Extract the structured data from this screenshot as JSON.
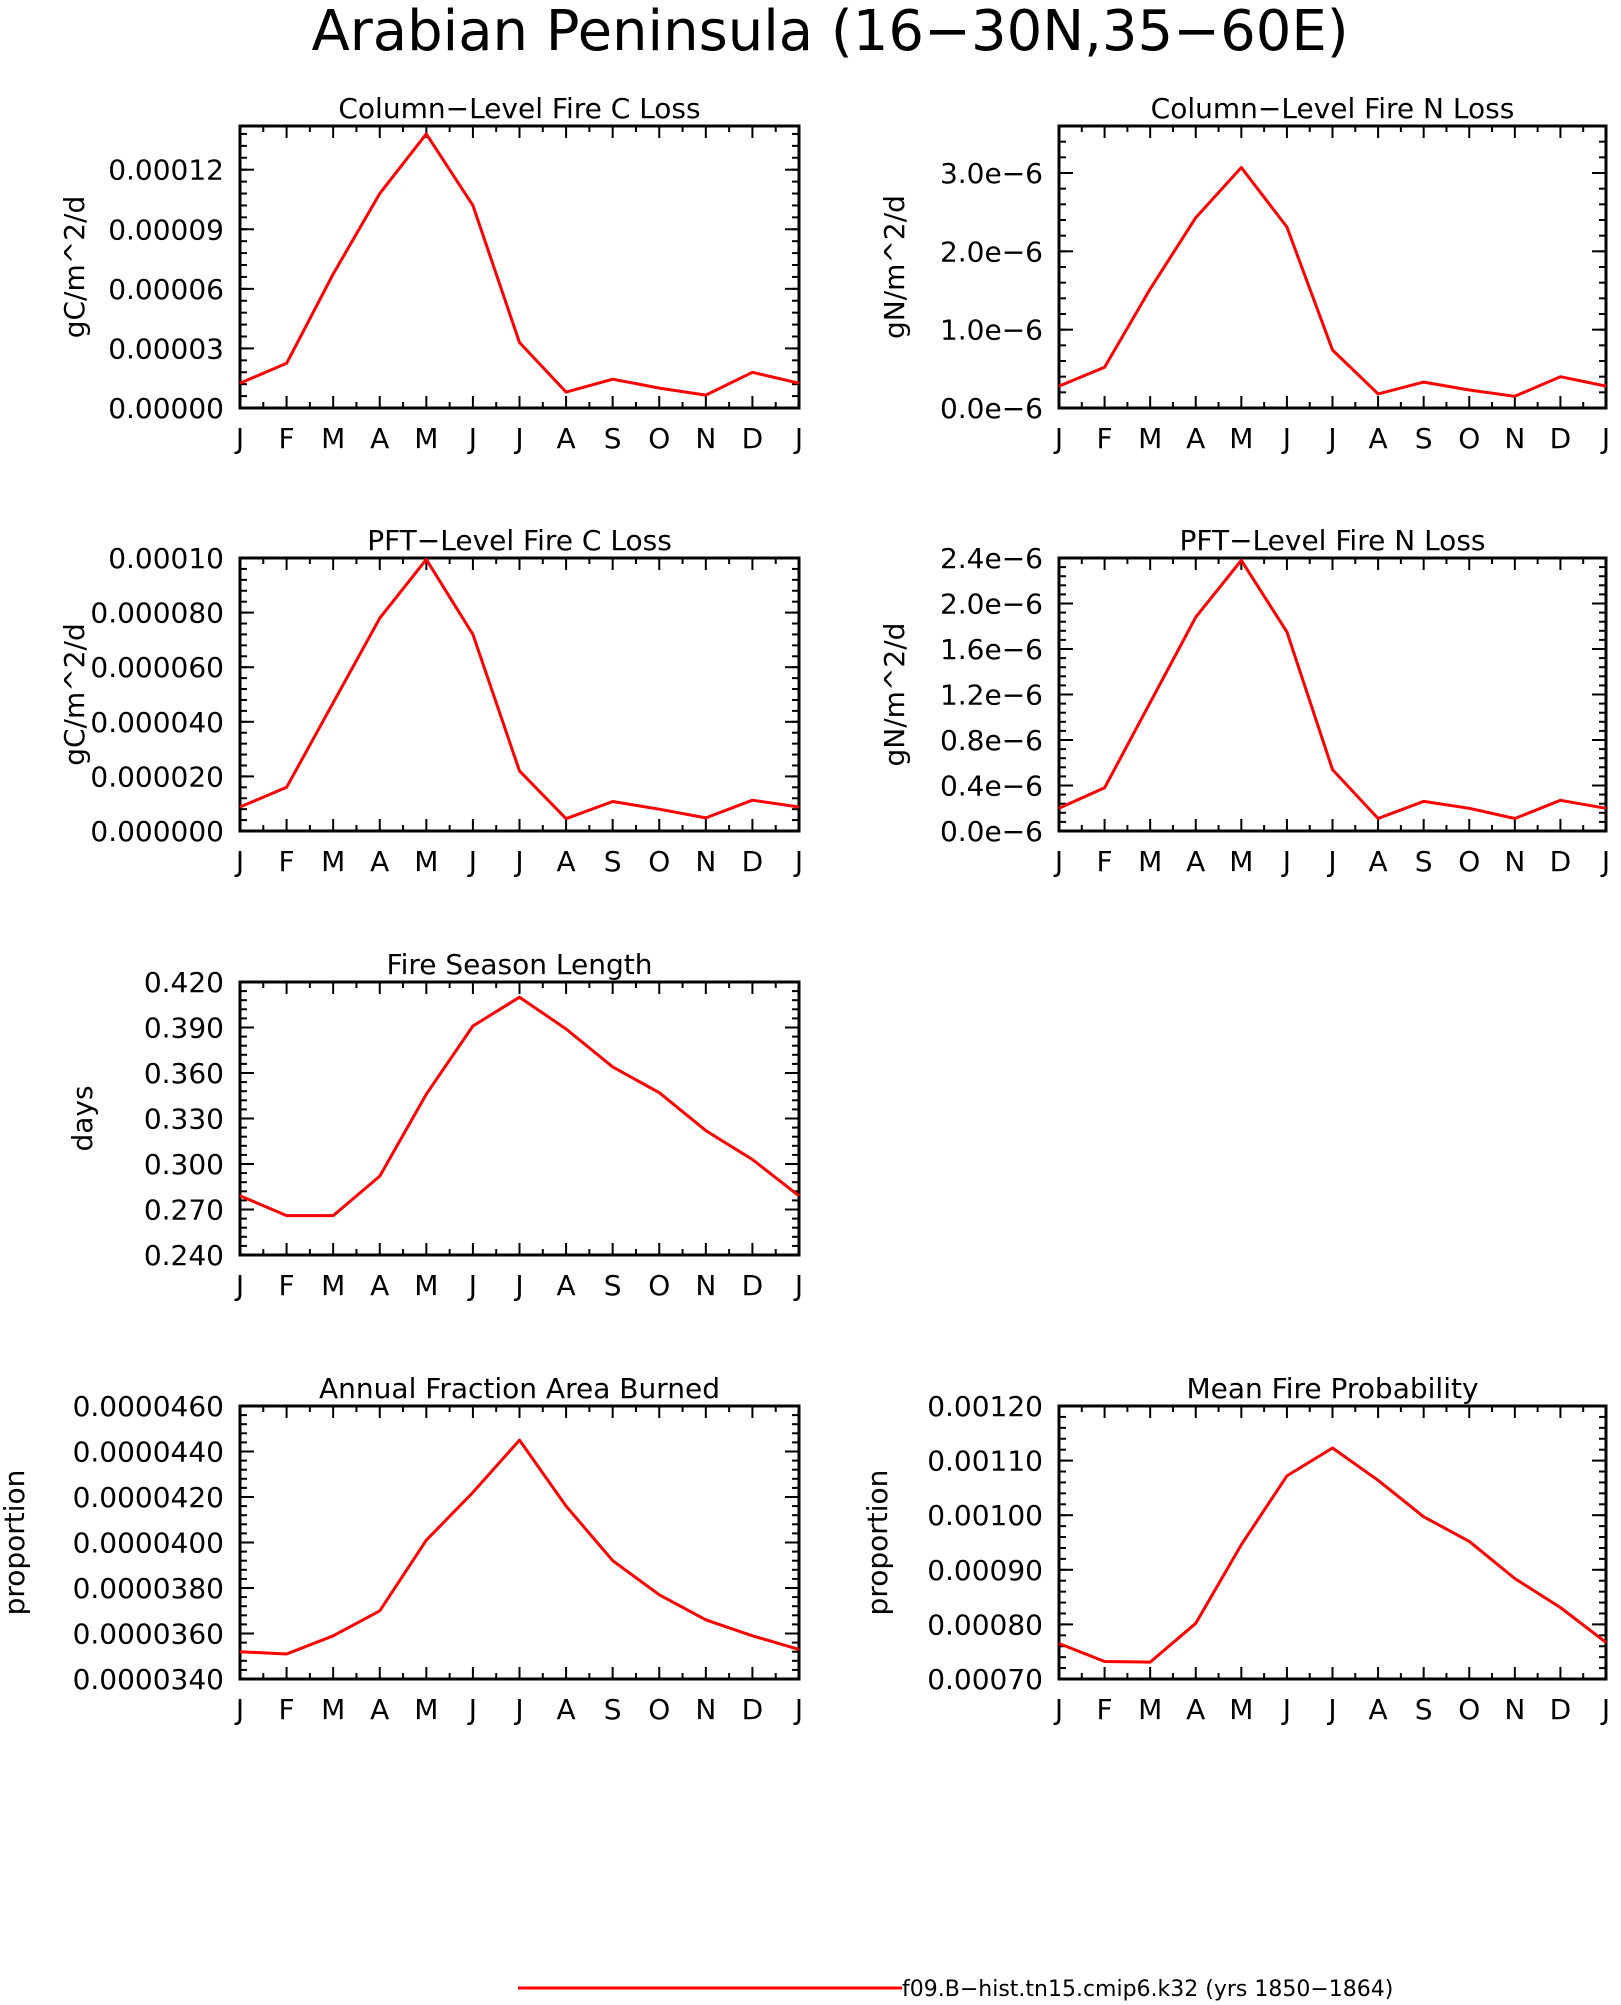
{
  "title": "Arabian Peninsula (16−30N,35−60E)",
  "legend": {
    "label": "f09.B−hist.tn15.cmip6.k32 (yrs 1850−1864)",
    "color": "#ff0000"
  },
  "chart_data": [
    {
      "id": "column-c-loss",
      "type": "line",
      "title": "Column−Level Fire C Loss",
      "ylabel": "gC/m^2/d",
      "categories": [
        "J",
        "F",
        "M",
        "A",
        "M",
        "J",
        "J",
        "A",
        "S",
        "O",
        "N",
        "D",
        "J"
      ],
      "ylim": [
        0,
        0.000142
      ],
      "yticks": [
        "0.00000",
        "0.00003",
        "0.00006",
        "0.00009",
        "0.00012"
      ],
      "ytick_values": [
        0,
        3e-05,
        6e-05,
        9e-05,
        0.00012
      ],
      "series": [
        {
          "values": [
            1.25e-05,
            2.25e-05,
            6.75e-05,
            0.000108,
            0.000138,
            0.000102,
            3.3e-05,
            8e-06,
            1.45e-05,
            1e-05,
            6.5e-06,
            1.8e-05,
            1.25e-05
          ]
        }
      ],
      "grid": false
    },
    {
      "id": "column-n-loss",
      "type": "line",
      "title": "Column−Level Fire N Loss",
      "ylabel": "gN/m^2/d",
      "categories": [
        "J",
        "F",
        "M",
        "A",
        "M",
        "J",
        "J",
        "A",
        "S",
        "O",
        "N",
        "D",
        "J"
      ],
      "ylim": [
        0,
        3.6e-06
      ],
      "yticks": [
        "0.0e−6",
        "1.0e−6",
        "2.0e−6",
        "3.0e−6"
      ],
      "ytick_values": [
        0,
        1e-06,
        2e-06,
        3e-06
      ],
      "series": [
        {
          "values": [
            2.8e-07,
            5.2e-07,
            1.52e-06,
            2.43e-06,
            3.07e-06,
            2.31e-06,
            7.4e-07,
            1.8e-07,
            3.3e-07,
            2.3e-07,
            1.5e-07,
            4e-07,
            2.8e-07
          ]
        }
      ],
      "grid": false
    },
    {
      "id": "pft-c-loss",
      "type": "line",
      "title": "PFT−Level Fire C Loss",
      "ylabel": "gC/m^2/d",
      "categories": [
        "J",
        "F",
        "M",
        "A",
        "M",
        "J",
        "J",
        "A",
        "S",
        "O",
        "N",
        "D",
        "J"
      ],
      "ylim": [
        0,
        0.0001
      ],
      "yticks": [
        "0.000000",
        "0.000020",
        "0.000040",
        "0.000060",
        "0.000080",
        "0.00010"
      ],
      "ytick_values": [
        0,
        2e-05,
        4e-05,
        6e-05,
        8e-05,
        0.0001
      ],
      "series": [
        {
          "values": [
            8.8e-06,
            1.6e-05,
            4.7e-05,
            7.8e-05,
            9.95e-05,
            7.2e-05,
            2.2e-05,
            4.5e-06,
            1.08e-05,
            8e-06,
            4.8e-06,
            1.13e-05,
            8.8e-06
          ]
        }
      ],
      "grid": false
    },
    {
      "id": "pft-n-loss",
      "type": "line",
      "title": "PFT−Level Fire N Loss",
      "ylabel": "gN/m^2/d",
      "categories": [
        "J",
        "F",
        "M",
        "A",
        "M",
        "J",
        "J",
        "A",
        "S",
        "O",
        "N",
        "D",
        "J"
      ],
      "ylim": [
        0,
        2.4e-06
      ],
      "yticks": [
        "0.0e−6",
        "0.4e−6",
        "0.8e−6",
        "1.2e−6",
        "1.6e−6",
        "2.0e−6",
        "2.4e−6"
      ],
      "ytick_values": [
        0,
        4e-07,
        8e-07,
        1.2e-06,
        1.6e-06,
        2e-06,
        2.4e-06
      ],
      "series": [
        {
          "values": [
            2e-07,
            3.8e-07,
            1.13e-06,
            1.88e-06,
            2.38e-06,
            1.75e-06,
            5.4e-07,
            1.1e-07,
            2.6e-07,
            2e-07,
            1.1e-07,
            2.7e-07,
            2e-07
          ]
        }
      ],
      "grid": false
    },
    {
      "id": "fire-season-length",
      "type": "line",
      "title": "Fire Season Length",
      "ylabel": "days",
      "categories": [
        "J",
        "F",
        "M",
        "A",
        "M",
        "J",
        "J",
        "A",
        "S",
        "O",
        "N",
        "D",
        "J"
      ],
      "ylim": [
        0.24,
        0.42
      ],
      "yticks": [
        "0.240",
        "0.270",
        "0.300",
        "0.330",
        "0.360",
        "0.390",
        "0.420"
      ],
      "ytick_values": [
        0.24,
        0.27,
        0.3,
        0.33,
        0.36,
        0.39,
        0.42
      ],
      "series": [
        {
          "values": [
            0.279,
            0.266,
            0.266,
            0.292,
            0.346,
            0.391,
            0.41,
            0.389,
            0.364,
            0.347,
            0.322,
            0.303,
            0.279
          ]
        }
      ],
      "grid": false
    },
    {
      "id": "annual-fraction-area-burned",
      "type": "line",
      "title": "Annual Fraction Area Burned",
      "ylabel": "proportion",
      "categories": [
        "J",
        "F",
        "M",
        "A",
        "M",
        "J",
        "J",
        "A",
        "S",
        "O",
        "N",
        "D",
        "J"
      ],
      "ylim": [
        3.4e-05,
        4.6e-05
      ],
      "yticks": [
        "0.0000340",
        "0.0000360",
        "0.0000380",
        "0.0000400",
        "0.0000420",
        "0.0000440",
        "0.0000460"
      ],
      "ytick_values": [
        3.4e-05,
        3.6e-05,
        3.8e-05,
        4e-05,
        4.2e-05,
        4.4e-05,
        4.6e-05
      ],
      "series": [
        {
          "values": [
            3.52e-05,
            3.51e-05,
            3.59e-05,
            3.7e-05,
            4.01e-05,
            4.22e-05,
            4.45e-05,
            4.16e-05,
            3.92e-05,
            3.77e-05,
            3.66e-05,
            3.59e-05,
            3.53e-05
          ]
        }
      ],
      "grid": false
    },
    {
      "id": "mean-fire-probability",
      "type": "line",
      "title": "Mean Fire Probability",
      "ylabel": "proportion",
      "categories": [
        "J",
        "F",
        "M",
        "A",
        "M",
        "J",
        "J",
        "A",
        "S",
        "O",
        "N",
        "D",
        "J"
      ],
      "ylim": [
        0.0007,
        0.0012
      ],
      "yticks": [
        "0.00070",
        "0.00080",
        "0.00090",
        "0.00100",
        "0.00110",
        "0.00120"
      ],
      "ytick_values": [
        0.0007,
        0.0008,
        0.0009,
        0.001,
        0.0011,
        0.0012
      ],
      "series": [
        {
          "values": [
            0.000765,
            0.000732,
            0.000731,
            0.000802,
            0.000946,
            0.001072,
            0.001123,
            0.001064,
            0.000997,
            0.000952,
            0.000884,
            0.000831,
            0.000767
          ]
        }
      ],
      "grid": false
    }
  ]
}
